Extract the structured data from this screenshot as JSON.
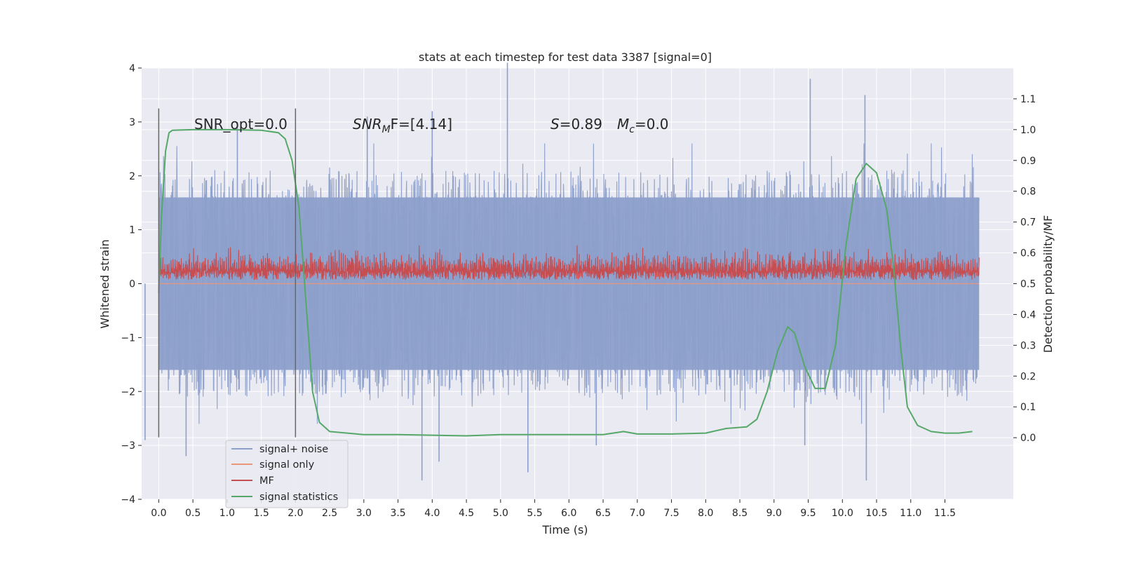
{
  "chart_data": {
    "type": "line",
    "title": "stats at each timestep for test data 3387 [signal=0]",
    "xlabel": "Time (s)",
    "ylabel_left": "Whitened strain",
    "ylabel_right": "Detection probability/MF",
    "xlim": [
      -0.25,
      12.5
    ],
    "ylim_left": [
      -4,
      4
    ],
    "ylim_right": [
      -0.2,
      1.2
    ],
    "x_ticks": [
      0.0,
      0.5,
      1.0,
      1.5,
      2.0,
      2.5,
      3.0,
      3.5,
      4.0,
      4.5,
      5.0,
      5.5,
      6.0,
      6.5,
      7.0,
      7.5,
      8.0,
      8.5,
      9.0,
      9.5,
      10.0,
      10.5,
      11.0,
      11.5
    ],
    "x_tick_labels": [
      "0.0",
      "0.5",
      "1.0",
      "1.5",
      "2.0",
      "2.5",
      "3.0",
      "3.5",
      "4.0",
      "4.5",
      "5.0",
      "5.5",
      "6.0",
      "6.5",
      "7.0",
      "7.5",
      "8.0",
      "8.5",
      "9.0",
      "9.5",
      "10.0",
      "10.5",
      "11.0",
      "11.5"
    ],
    "y_left_ticks": [
      4,
      3,
      2,
      1,
      0,
      -1,
      -2,
      -3,
      -4
    ],
    "y_left_tick_labels": [
      "4",
      "3",
      "2",
      "1",
      "0",
      "−1",
      "−2",
      "−3",
      "−4"
    ],
    "y_right_ticks": [
      1.1,
      1.0,
      0.9,
      0.8,
      0.7,
      0.6,
      0.5,
      0.4,
      0.3,
      0.2,
      0.1,
      0.0
    ],
    "y_right_tick_labels": [
      "1.1",
      "1.0",
      "0.9",
      "0.8",
      "0.7",
      "0.6",
      "0.5",
      "0.4",
      "0.3",
      "0.2",
      "0.1",
      "0.0"
    ],
    "grid": true,
    "background": "#eaeaf2",
    "legend_position": "lower-left",
    "annotations": {
      "snr_opt": "SNR_opt=0.0",
      "snr_mf_sym": "SNR",
      "snr_mf_sub": "M",
      "snr_mf_rest": "F=[4.14]",
      "s_sym": "S",
      "s_rest": "=0.89",
      "mc_sym": "M",
      "mc_sub": "c",
      "mc_rest": "=0.0"
    },
    "vlines_x": [
      0.0,
      2.0
    ],
    "series": [
      {
        "name": "signal+ noise",
        "color": "#8da0cb",
        "axis": "left",
        "x_range": [
          0.0,
          12.0
        ],
        "core_range": [
          -1.6,
          1.6
        ],
        "max_envelope": 2.6,
        "spikes": [
          [
            5.1,
            4.1
          ],
          [
            9.53,
            3.8
          ],
          [
            10.33,
            3.5
          ],
          [
            1.15,
            3.0
          ],
          [
            3.05,
            3.1
          ],
          [
            4.0,
            3.2
          ],
          [
            -0.2,
            -2.9
          ],
          [
            0.4,
            -3.2
          ],
          [
            3.85,
            -3.65
          ],
          [
            4.1,
            -3.3
          ],
          [
            5.4,
            -3.5
          ],
          [
            6.4,
            -3.0
          ],
          [
            9.45,
            -3.0
          ],
          [
            10.35,
            -3.65
          ]
        ]
      },
      {
        "name": "signal only",
        "color": "#e9967a",
        "axis": "left",
        "values_constant": 0.0
      },
      {
        "name": "MF",
        "color": "#c44e52",
        "axis": "left",
        "x_range": [
          0.0,
          12.0
        ],
        "base": 0.2,
        "range": [
          0.0,
          0.8
        ]
      },
      {
        "name": "signal statistics",
        "color": "#55a868",
        "axis": "right",
        "points": [
          [
            0.0,
            0.47
          ],
          [
            0.04,
            0.72
          ],
          [
            0.1,
            0.93
          ],
          [
            0.15,
            0.99
          ],
          [
            0.2,
            0.998
          ],
          [
            0.5,
            1.0
          ],
          [
            1.0,
            1.0
          ],
          [
            1.5,
            0.998
          ],
          [
            1.75,
            0.99
          ],
          [
            1.85,
            0.97
          ],
          [
            1.95,
            0.9
          ],
          [
            2.05,
            0.75
          ],
          [
            2.15,
            0.45
          ],
          [
            2.25,
            0.15
          ],
          [
            2.35,
            0.05
          ],
          [
            2.5,
            0.02
          ],
          [
            3.0,
            0.01
          ],
          [
            3.5,
            0.01
          ],
          [
            4.0,
            0.008
          ],
          [
            4.5,
            0.006
          ],
          [
            5.0,
            0.01
          ],
          [
            5.5,
            0.01
          ],
          [
            6.0,
            0.01
          ],
          [
            6.5,
            0.01
          ],
          [
            6.8,
            0.02
          ],
          [
            7.0,
            0.012
          ],
          [
            7.5,
            0.012
          ],
          [
            8.0,
            0.015
          ],
          [
            8.3,
            0.03
          ],
          [
            8.6,
            0.035
          ],
          [
            8.75,
            0.06
          ],
          [
            8.9,
            0.15
          ],
          [
            9.05,
            0.28
          ],
          [
            9.2,
            0.36
          ],
          [
            9.3,
            0.34
          ],
          [
            9.45,
            0.23
          ],
          [
            9.6,
            0.16
          ],
          [
            9.75,
            0.16
          ],
          [
            9.9,
            0.3
          ],
          [
            10.05,
            0.62
          ],
          [
            10.2,
            0.84
          ],
          [
            10.35,
            0.89
          ],
          [
            10.5,
            0.86
          ],
          [
            10.65,
            0.74
          ],
          [
            10.75,
            0.55
          ],
          [
            10.85,
            0.3
          ],
          [
            10.95,
            0.1
          ],
          [
            11.1,
            0.04
          ],
          [
            11.3,
            0.02
          ],
          [
            11.5,
            0.015
          ],
          [
            11.7,
            0.015
          ],
          [
            11.9,
            0.02
          ]
        ]
      }
    ]
  }
}
